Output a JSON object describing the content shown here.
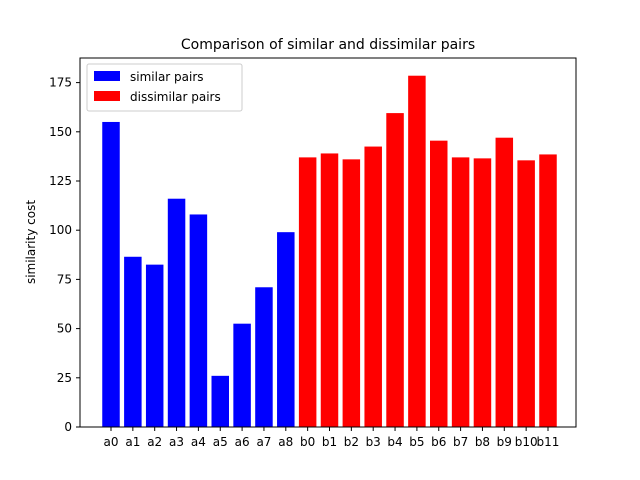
{
  "chart_data": {
    "type": "bar",
    "title": "Comparison of similar and dissimilar pairs",
    "xlabel": "",
    "ylabel": "similarity cost",
    "ylim": [
      0,
      187.5
    ],
    "yticks": [
      0,
      25,
      50,
      75,
      100,
      125,
      150,
      175
    ],
    "grid": false,
    "legend_placement": "top-left",
    "series": [
      {
        "name": "similar pairs",
        "color": "#0000ff",
        "categories": [
          "a0",
          "a1",
          "a2",
          "a3",
          "a4",
          "a5",
          "a6",
          "a7",
          "a8"
        ],
        "values": [
          155,
          86.5,
          82.5,
          116,
          108,
          26,
          52.5,
          71,
          99
        ]
      },
      {
        "name": "dissimilar pairs",
        "color": "#ff0000",
        "categories": [
          "b0",
          "b1",
          "b2",
          "b3",
          "b4",
          "b5",
          "b6",
          "b7",
          "b8",
          "b9",
          "b10",
          "b11"
        ],
        "values": [
          137,
          139,
          136,
          142.5,
          159.5,
          178.5,
          145.5,
          137,
          136.5,
          147,
          135.5,
          138.5
        ]
      }
    ]
  }
}
